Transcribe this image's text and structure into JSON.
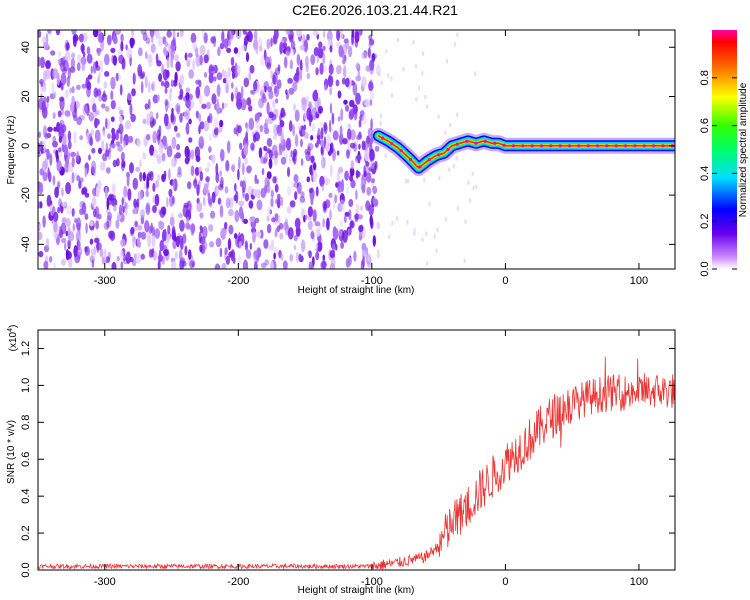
{
  "title": "C2E6.2026.103.21.44.R21",
  "chart_data": [
    {
      "type": "heatmap",
      "xlabel": "Height of straight line (km)",
      "ylabel": "Frequency (Hz)",
      "xlim": [
        -350,
        127
      ],
      "ylim": [
        -50,
        47
      ],
      "xticks": [
        -300,
        -200,
        -100,
        0,
        100
      ],
      "yticks": [
        -40,
        -20,
        0,
        20,
        40
      ],
      "noise_cutoff_x": -95,
      "ridge": {
        "x": [
          -95,
          -88,
          -80,
          -72,
          -65,
          -58,
          -52,
          -46,
          -40,
          -34,
          -28,
          -22,
          -16,
          -10,
          -5,
          0,
          127
        ],
        "freq": [
          4,
          2,
          -1,
          -5,
          -9,
          -6,
          -4,
          -3,
          0,
          1,
          2,
          1,
          2,
          1,
          1,
          0,
          0
        ]
      },
      "colorbar": {
        "label": "Normalized spectral amplitude",
        "range": [
          0,
          1
        ],
        "ticks": [
          "0.0",
          "0.2",
          "0.4",
          "0.6",
          "0.8"
        ]
      }
    },
    {
      "type": "line",
      "xlabel": "Height of straight line (km)",
      "ylabel": "SNR (10 * v/v)",
      "scale_label": "(x10",
      "scale_exponent": "4",
      "xlim": [
        -350,
        127
      ],
      "ylim": [
        0,
        1.3
      ],
      "xticks": [
        -300,
        -200,
        -100,
        0,
        100
      ],
      "yticks": [
        "0.0",
        "0.2",
        "0.4",
        "0.6",
        "0.8",
        "1.0",
        "1.2"
      ],
      "color": "#ee3333",
      "trend": {
        "x": [
          -350,
          -100,
          -90,
          -80,
          -60,
          -50,
          -40,
          -30,
          -20,
          -10,
          0,
          10,
          20,
          30,
          40,
          50,
          60,
          70,
          80,
          90,
          100,
          110,
          127
        ],
        "y": [
          0.02,
          0.02,
          0.03,
          0.04,
          0.07,
          0.13,
          0.25,
          0.33,
          0.42,
          0.5,
          0.58,
          0.65,
          0.72,
          0.8,
          0.86,
          0.9,
          0.93,
          0.95,
          0.96,
          0.96,
          0.97,
          0.97,
          0.97
        ]
      }
    }
  ]
}
